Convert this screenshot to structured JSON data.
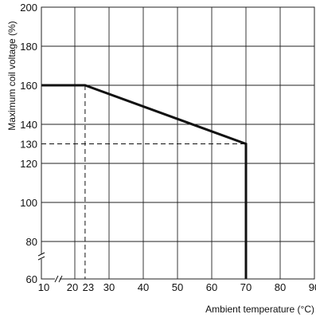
{
  "chart_data": {
    "type": "line",
    "title": "",
    "xlabel": "Ambient temperature (°C)",
    "ylabel": "Maximum coil voltage (%)",
    "xlim": [
      10,
      90
    ],
    "ylim": [
      60,
      200
    ],
    "x_ticks": [
      10,
      20,
      23,
      30,
      40,
      50,
      60,
      70,
      80,
      90
    ],
    "x_tick_labels": [
      "10",
      "20",
      "23",
      "30",
      "40",
      "50",
      "60",
      "70",
      "80",
      "90"
    ],
    "y_ticks": [
      60,
      80,
      100,
      120,
      130,
      140,
      160,
      180,
      200
    ],
    "y_tick_labels": [
      "60",
      "80",
      "100",
      "120",
      "130",
      "140",
      "160",
      "180",
      "200"
    ],
    "grid": true,
    "axis_breaks": [
      "x",
      "y"
    ],
    "series": [
      {
        "x": [
          10,
          23,
          70,
          70
        ],
        "y": [
          160,
          160,
          130,
          60
        ],
        "style": "solid"
      }
    ],
    "reference_lines": [
      {
        "x": [
          10,
          70
        ],
        "y": [
          130,
          130
        ],
        "style": "dashed"
      },
      {
        "x": [
          23,
          23
        ],
        "y": [
          160,
          60
        ],
        "style": "dashed"
      }
    ],
    "colors": {
      "line": "#111111",
      "grid": "#222222",
      "background": "#ffffff"
    }
  }
}
